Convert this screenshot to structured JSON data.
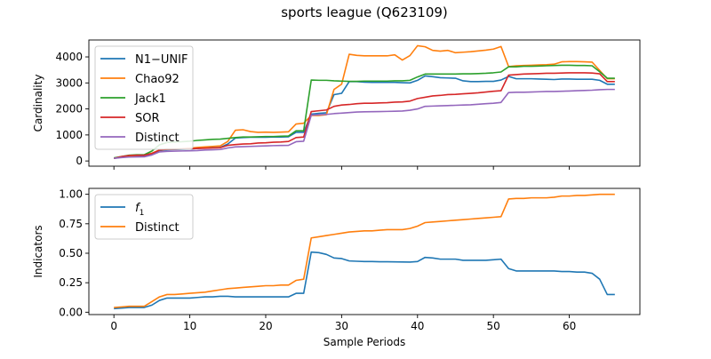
{
  "figure": {
    "title": "sports league (Q623109)"
  },
  "colors": {
    "blue": "#1f77b4",
    "orange": "#ff7f0e",
    "green": "#2ca02c",
    "red": "#d62728",
    "purple": "#9467bd"
  },
  "chart_data": [
    {
      "type": "line",
      "ylabel": "Cardinality",
      "xlabel": "",
      "xlim": [
        -3.3,
        69.3
      ],
      "ylim": [
        -200,
        4650
      ],
      "xticks": [
        0,
        10,
        20,
        30,
        40,
        50,
        60
      ],
      "yticks": [
        0,
        1000,
        2000,
        3000,
        4000
      ],
      "show_xticklabels": false,
      "grid": false,
      "legend": "top-left",
      "x": [
        0,
        1,
        2,
        3,
        4,
        5,
        6,
        7,
        8,
        9,
        10,
        11,
        12,
        13,
        14,
        15,
        16,
        17,
        18,
        19,
        20,
        21,
        22,
        23,
        24,
        25,
        26,
        27,
        28,
        29,
        30,
        31,
        32,
        33,
        34,
        35,
        36,
        37,
        38,
        39,
        40,
        41,
        42,
        43,
        44,
        45,
        46,
        47,
        48,
        49,
        50,
        51,
        52,
        53,
        54,
        55,
        56,
        57,
        58,
        59,
        60,
        61,
        62,
        63,
        64,
        65,
        66
      ],
      "series": [
        {
          "name": "N1−UNIF",
          "color": "#1f77b4",
          "values": [
            100,
            150,
            180,
            190,
            200,
            280,
            400,
            430,
            440,
            450,
            460,
            480,
            500,
            510,
            520,
            650,
            880,
            900,
            910,
            910,
            910,
            920,
            920,
            930,
            1100,
            1100,
            1800,
            1830,
            1850,
            2550,
            2600,
            3050,
            3050,
            3030,
            3020,
            3020,
            3020,
            3020,
            3010,
            3000,
            3100,
            3270,
            3240,
            3200,
            3190,
            3180,
            3080,
            3050,
            3050,
            3060,
            3060,
            3110,
            3250,
            3160,
            3160,
            3160,
            3150,
            3140,
            3130,
            3150,
            3150,
            3140,
            3140,
            3140,
            3100,
            2950,
            2950
          ]
        },
        {
          "name": "Chao92",
          "color": "#ff7f0e",
          "values": [
            100,
            150,
            200,
            210,
            220,
            300,
            420,
            450,
            460,
            470,
            490,
            520,
            540,
            560,
            580,
            750,
            1180,
            1200,
            1130,
            1100,
            1110,
            1100,
            1110,
            1120,
            1420,
            1450,
            1750,
            1750,
            1780,
            2750,
            2950,
            4100,
            4060,
            4040,
            4040,
            4040,
            4040,
            4080,
            3880,
            4050,
            4430,
            4390,
            4250,
            4220,
            4250,
            4160,
            4180,
            4200,
            4230,
            4260,
            4300,
            4400,
            3630,
            3660,
            3670,
            3680,
            3690,
            3700,
            3720,
            3810,
            3820,
            3820,
            3810,
            3800,
            3480,
            3160,
            3160
          ]
        },
        {
          "name": "Jack1",
          "color": "#2ca02c",
          "values": [
            120,
            170,
            220,
            240,
            240,
            380,
            620,
            710,
            730,
            740,
            760,
            790,
            810,
            830,
            840,
            870,
            900,
            920,
            920,
            930,
            940,
            940,
            950,
            960,
            1160,
            1160,
            3110,
            3100,
            3100,
            3080,
            3070,
            3060,
            3060,
            3070,
            3070,
            3070,
            3070,
            3080,
            3080,
            3100,
            3230,
            3340,
            3340,
            3340,
            3340,
            3340,
            3350,
            3350,
            3360,
            3370,
            3390,
            3420,
            3620,
            3620,
            3640,
            3640,
            3650,
            3660,
            3670,
            3680,
            3680,
            3670,
            3670,
            3660,
            3430,
            3180,
            3180
          ]
        },
        {
          "name": "SOR",
          "color": "#d62728",
          "values": [
            100,
            170,
            210,
            220,
            220,
            280,
            420,
            450,
            450,
            460,
            470,
            480,
            490,
            500,
            510,
            600,
            630,
            650,
            660,
            690,
            700,
            720,
            730,
            750,
            900,
            920,
            1900,
            1930,
            1960,
            2100,
            2150,
            2170,
            2200,
            2220,
            2220,
            2230,
            2240,
            2260,
            2270,
            2300,
            2400,
            2450,
            2500,
            2520,
            2550,
            2560,
            2580,
            2600,
            2620,
            2650,
            2680,
            2700,
            3300,
            3320,
            3340,
            3350,
            3360,
            3370,
            3370,
            3380,
            3390,
            3390,
            3390,
            3380,
            3350,
            3050,
            3050
          ]
        },
        {
          "name": "Distinct",
          "color": "#9467bd",
          "values": [
            100,
            130,
            150,
            155,
            160,
            230,
            350,
            370,
            380,
            385,
            390,
            400,
            420,
            430,
            440,
            500,
            540,
            550,
            560,
            570,
            580,
            590,
            595,
            600,
            740,
            760,
            1760,
            1780,
            1790,
            1820,
            1840,
            1860,
            1880,
            1890,
            1895,
            1900,
            1905,
            1910,
            1920,
            1950,
            2000,
            2100,
            2110,
            2120,
            2130,
            2140,
            2150,
            2160,
            2180,
            2200,
            2220,
            2250,
            2630,
            2640,
            2640,
            2650,
            2660,
            2670,
            2670,
            2680,
            2690,
            2700,
            2710,
            2720,
            2740,
            2750,
            2750
          ]
        }
      ]
    },
    {
      "type": "line",
      "ylabel": "Indicators",
      "xlabel": "Sample Periods",
      "xlim": [
        -3.3,
        69.3
      ],
      "ylim": [
        -0.02,
        1.05
      ],
      "xticks": [
        0,
        10,
        20,
        30,
        40,
        50,
        60
      ],
      "yticks": [
        0.0,
        0.25,
        0.5,
        0.75,
        1.0
      ],
      "show_xticklabels": true,
      "grid": false,
      "legend": "top-left",
      "x": [
        0,
        1,
        2,
        3,
        4,
        5,
        6,
        7,
        8,
        9,
        10,
        11,
        12,
        13,
        14,
        15,
        16,
        17,
        18,
        19,
        20,
        21,
        22,
        23,
        24,
        25,
        26,
        27,
        28,
        29,
        30,
        31,
        32,
        33,
        34,
        35,
        36,
        37,
        38,
        39,
        40,
        41,
        42,
        43,
        44,
        45,
        46,
        47,
        48,
        49,
        50,
        51,
        52,
        53,
        54,
        55,
        56,
        57,
        58,
        59,
        60,
        61,
        62,
        63,
        64,
        65,
        66
      ],
      "series": [
        {
          "name": "f",
          "sub": "1",
          "color": "#1f77b4",
          "values": [
            0.03,
            0.035,
            0.04,
            0.04,
            0.04,
            0.06,
            0.1,
            0.12,
            0.12,
            0.12,
            0.12,
            0.125,
            0.13,
            0.13,
            0.135,
            0.135,
            0.13,
            0.13,
            0.13,
            0.13,
            0.13,
            0.13,
            0.13,
            0.13,
            0.16,
            0.16,
            0.51,
            0.505,
            0.49,
            0.46,
            0.455,
            0.435,
            0.432,
            0.43,
            0.43,
            0.428,
            0.428,
            0.427,
            0.426,
            0.425,
            0.43,
            0.465,
            0.46,
            0.45,
            0.45,
            0.45,
            0.44,
            0.44,
            0.44,
            0.44,
            0.445,
            0.45,
            0.37,
            0.35,
            0.35,
            0.35,
            0.35,
            0.35,
            0.35,
            0.345,
            0.345,
            0.34,
            0.34,
            0.33,
            0.28,
            0.15,
            0.15
          ]
        },
        {
          "name": "Distinct",
          "color": "#ff7f0e",
          "values": [
            0.04,
            0.045,
            0.05,
            0.05,
            0.05,
            0.09,
            0.13,
            0.15,
            0.15,
            0.155,
            0.16,
            0.165,
            0.17,
            0.18,
            0.19,
            0.2,
            0.205,
            0.21,
            0.215,
            0.22,
            0.225,
            0.225,
            0.23,
            0.23,
            0.27,
            0.28,
            0.63,
            0.64,
            0.65,
            0.66,
            0.67,
            0.68,
            0.685,
            0.69,
            0.69,
            0.695,
            0.7,
            0.7,
            0.7,
            0.71,
            0.73,
            0.76,
            0.765,
            0.77,
            0.775,
            0.78,
            0.785,
            0.79,
            0.795,
            0.8,
            0.805,
            0.81,
            0.96,
            0.965,
            0.965,
            0.97,
            0.97,
            0.97,
            0.975,
            0.985,
            0.985,
            0.99,
            0.99,
            0.995,
            1.0,
            1.0,
            1.0
          ]
        }
      ]
    }
  ]
}
